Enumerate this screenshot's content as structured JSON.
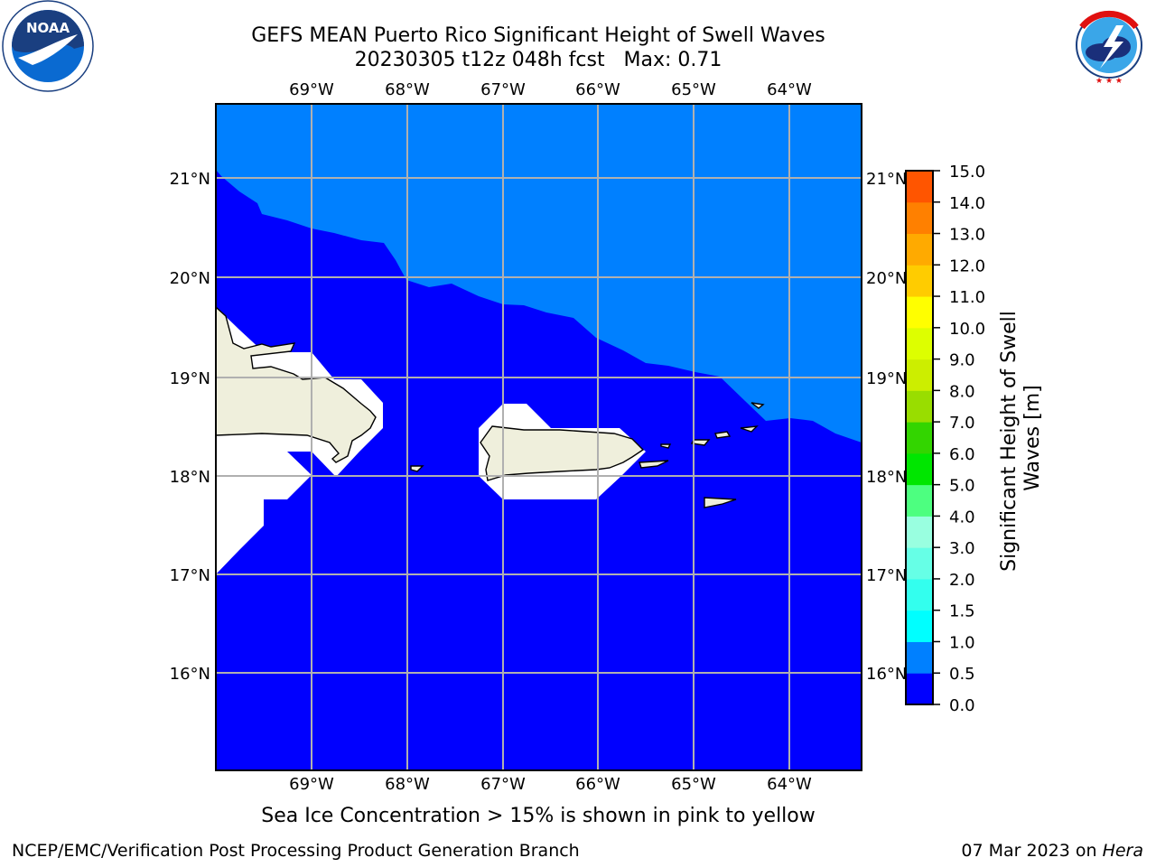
{
  "title": {
    "line1": "GEFS MEAN Puerto Rico Significant Height of Swell Waves",
    "line2": "20230305 t12z 048h fcst   Max: 0.71"
  },
  "logos": {
    "noaa": {
      "text": "NOAA",
      "ring": "NATIONAL OCEANIC AND ATMOSPHERIC ADMINISTRATION",
      "ring_bottom": "U.S. DEPARTMENT OF COMMERCE"
    },
    "nws": {
      "ring": "NATIONAL WEATHER SERVICE"
    }
  },
  "map": {
    "lon_labels": [
      "69°W",
      "68°W",
      "67°W",
      "66°W",
      "65°W",
      "64°W"
    ],
    "lat_labels": [
      "21°N",
      "20°N",
      "19°N",
      "18°N",
      "17°N",
      "16°N"
    ],
    "colors": {
      "ocean_low": "#0000ff",
      "ocean_mid": "#0080ff",
      "land": "#efefdc",
      "no_data": "#ffffff",
      "grid": "#b0b0b0"
    }
  },
  "colorbar": {
    "label": "Significant Height of Swell Waves [m]",
    "ticks": [
      "0.0",
      "0.5",
      "1.0",
      "1.5",
      "2.0",
      "3.0",
      "4.0",
      "5.0",
      "6.0",
      "7.0",
      "8.0",
      "9.0",
      "10.0",
      "11.0",
      "12.0",
      "13.0",
      "14.0",
      "15.0"
    ],
    "colors": [
      "#0000ff",
      "#0080ff",
      "#00ffff",
      "#33ffee",
      "#66ffe6",
      "#99ffe0",
      "#4dff80",
      "#00e600",
      "#33d500",
      "#99dd00",
      "#ccee00",
      "#ddff00",
      "#ffff00",
      "#ffcc00",
      "#ffaa00",
      "#ff8000",
      "#ff5500",
      "#ff2a00",
      "#ff0000"
    ]
  },
  "caption": "Sea Ice Concentration > 15% is shown in pink to yellow",
  "footer": {
    "left": "NCEP/EMC/Verification Post Processing Product Generation Branch",
    "right_date": "07 Mar 2023 on ",
    "right_host": "Hera"
  }
}
